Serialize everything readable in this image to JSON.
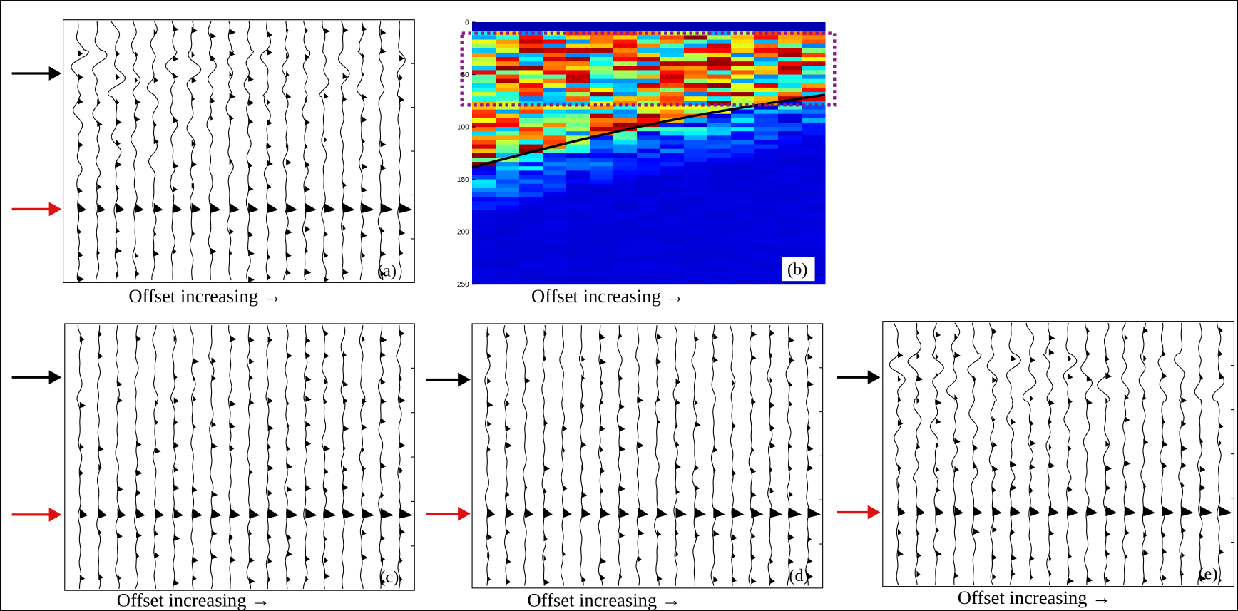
{
  "panels": [
    {
      "label": "(a)",
      "caption": "Offset increasing →"
    },
    {
      "label": "(b)",
      "caption": "Offset increasing →"
    },
    {
      "label": "(c)",
      "caption": "Offset increasing →"
    },
    {
      "label": "(d)",
      "caption": "Offset increasing →"
    },
    {
      "label": "(e)",
      "caption": "Offset increasing →"
    }
  ],
  "panel_b_axis": {
    "ylim": [
      0,
      250
    ],
    "yticks": [
      0,
      50,
      100,
      150,
      200,
      250
    ]
  }
}
